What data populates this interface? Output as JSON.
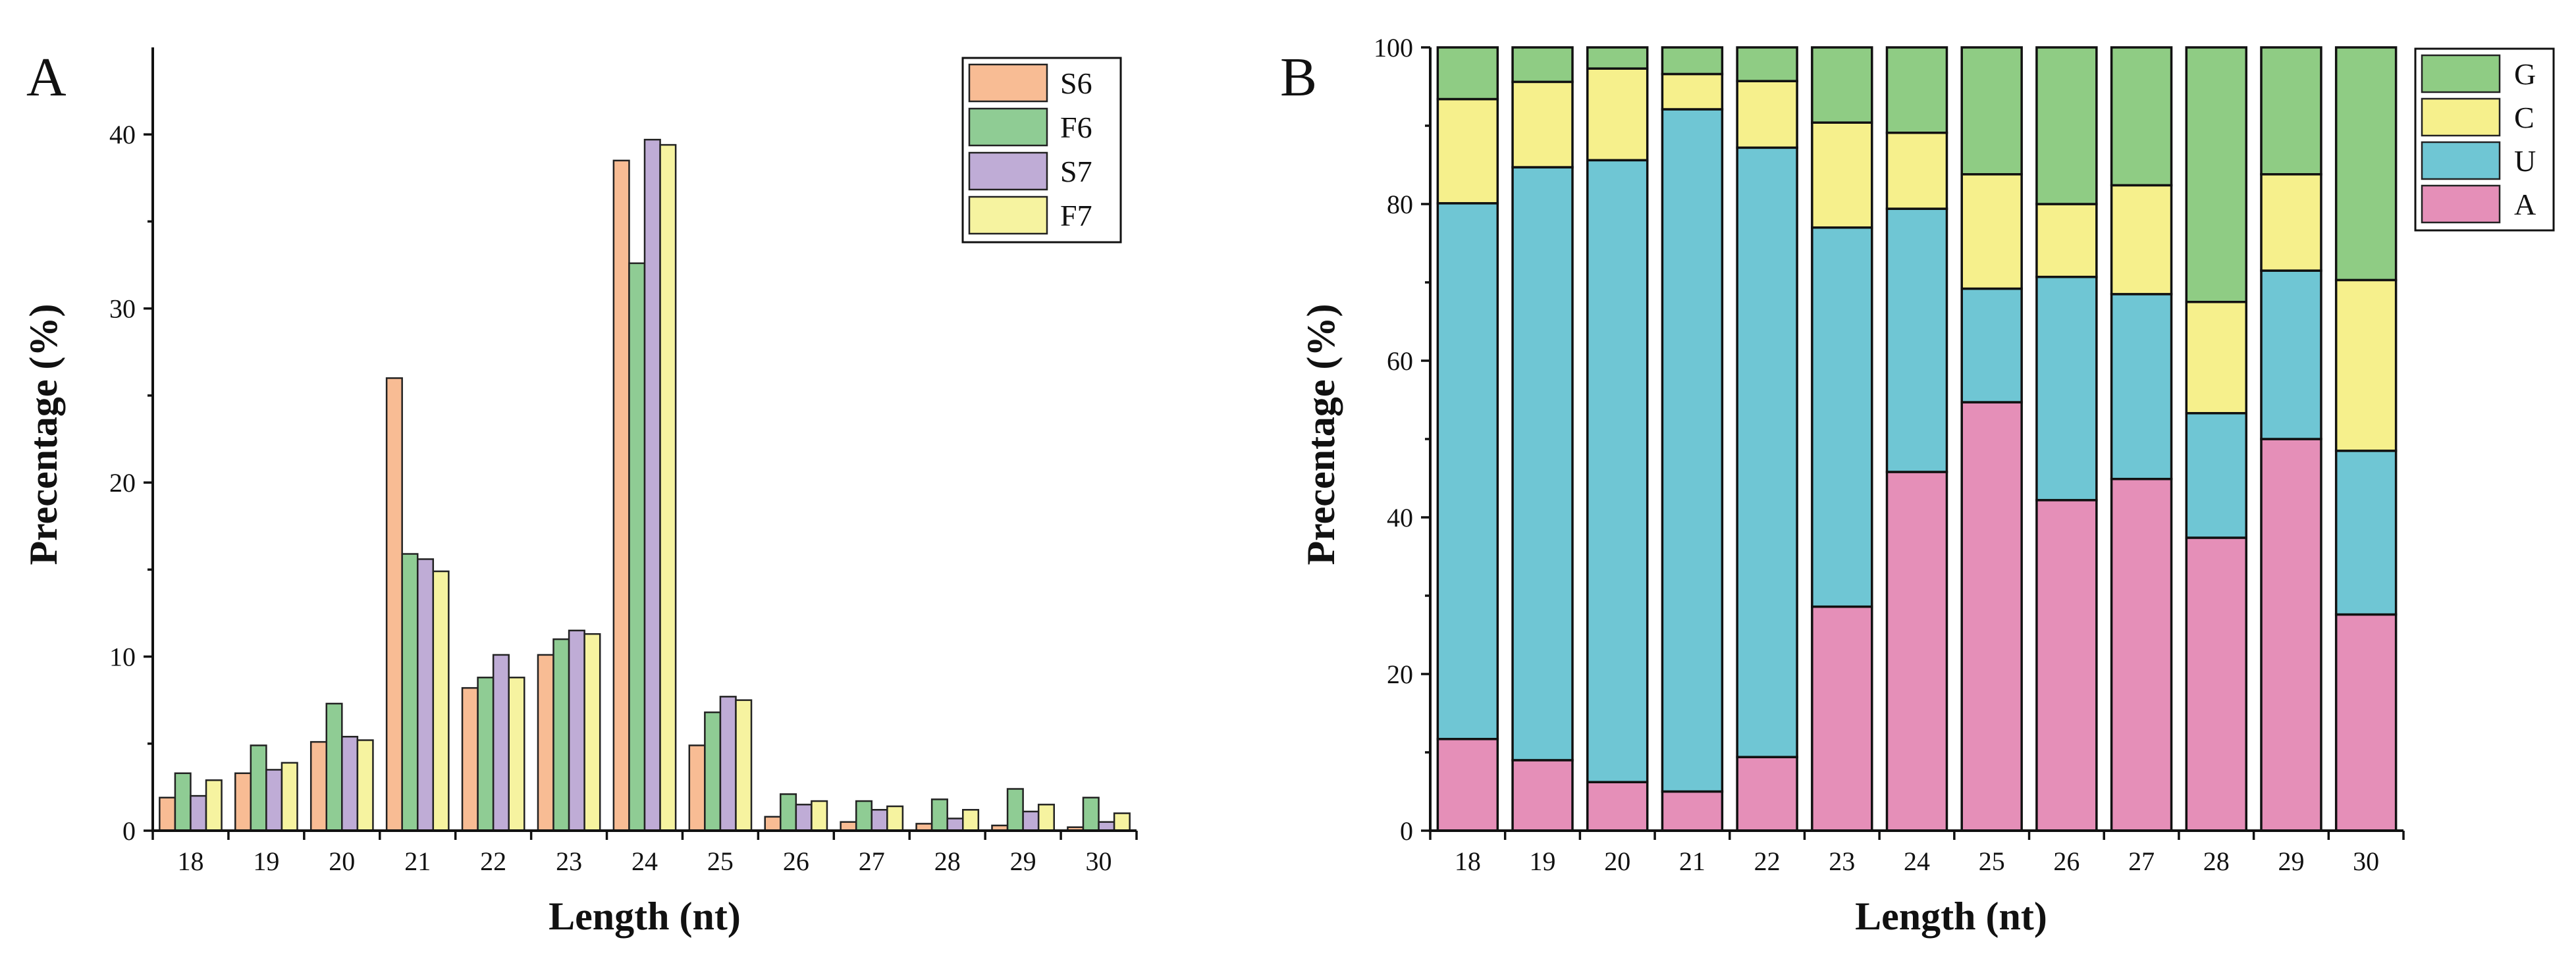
{
  "chart_data": [
    {
      "panel": "A",
      "type": "bar",
      "title": "",
      "xlabel": "Length (nt)",
      "ylabel": "Precentage (%)",
      "categories": [
        "18",
        "19",
        "20",
        "21",
        "22",
        "23",
        "24",
        "25",
        "26",
        "27",
        "28",
        "29",
        "30"
      ],
      "ylim": [
        0,
        45
      ],
      "yticks": [
        0,
        10,
        20,
        30,
        40
      ],
      "grid": false,
      "legend_position": "top-right",
      "series": [
        {
          "name": "S6",
          "color": "#f8bc94",
          "values": [
            1.9,
            3.3,
            5.1,
            26.0,
            8.2,
            10.1,
            38.5,
            4.9,
            0.8,
            0.5,
            0.4,
            0.3,
            0.2
          ]
        },
        {
          "name": "F6",
          "color": "#8fcc94",
          "values": [
            3.3,
            4.9,
            7.3,
            15.9,
            8.8,
            11.0,
            32.6,
            6.8,
            2.1,
            1.7,
            1.8,
            2.4,
            1.9
          ]
        },
        {
          "name": "S7",
          "color": "#bfacd6",
          "values": [
            2.0,
            3.5,
            5.4,
            15.6,
            10.1,
            11.5,
            39.7,
            7.7,
            1.5,
            1.2,
            0.7,
            1.1,
            0.5
          ]
        },
        {
          "name": "F7",
          "color": "#f6f3a0",
          "values": [
            2.9,
            3.9,
            5.2,
            14.9,
            8.8,
            11.3,
            39.4,
            7.5,
            1.7,
            1.4,
            1.2,
            1.5,
            1.0
          ]
        }
      ]
    },
    {
      "panel": "B",
      "type": "bar",
      "stacked": true,
      "title": "",
      "xlabel": "Length (nt)",
      "ylabel": "Precentage (%)",
      "categories": [
        "18",
        "19",
        "20",
        "21",
        "22",
        "23",
        "24",
        "25",
        "26",
        "27",
        "28",
        "29",
        "30"
      ],
      "ylim": [
        0,
        100
      ],
      "yticks": [
        0,
        20,
        40,
        60,
        80,
        100
      ],
      "grid": false,
      "legend_position": "top-right",
      "legend_order": [
        "G",
        "C",
        "U",
        "A"
      ],
      "series": [
        {
          "name": "A",
          "color": "#e58fb8",
          "values": [
            11.7,
            9.0,
            6.2,
            5.0,
            9.4,
            28.6,
            45.8,
            54.7,
            42.2,
            44.9,
            37.4,
            50.0,
            27.6
          ]
        },
        {
          "name": "U",
          "color": "#6fc6d4",
          "values": [
            68.4,
            75.7,
            79.4,
            87.1,
            77.8,
            48.4,
            33.6,
            14.5,
            28.5,
            23.6,
            15.9,
            21.5,
            20.9
          ]
        },
        {
          "name": "C",
          "color": "#f6f08c",
          "values": [
            13.3,
            10.9,
            11.7,
            4.5,
            8.5,
            13.4,
            9.7,
            14.6,
            9.3,
            13.9,
            14.2,
            12.3,
            21.8
          ]
        },
        {
          "name": "G",
          "color": "#8fcc84",
          "values": [
            6.6,
            4.4,
            2.7,
            3.4,
            4.3,
            9.6,
            10.9,
            16.2,
            20.0,
            17.6,
            32.5,
            16.2,
            29.7
          ]
        }
      ]
    }
  ]
}
